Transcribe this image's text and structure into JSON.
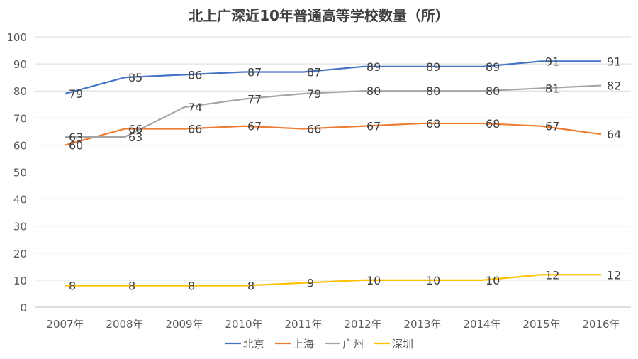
{
  "chart_data": {
    "type": "line",
    "title": "北上广深近10年普通高等学校数量（所）",
    "categories": [
      "2007年",
      "2008年",
      "2009年",
      "2010年",
      "2011年",
      "2012年",
      "2013年",
      "2014年",
      "2015年",
      "2016年"
    ],
    "series": [
      {
        "name": "北京",
        "color": "#4472C4",
        "values": [
          79,
          85,
          86,
          87,
          87,
          89,
          89,
          89,
          91,
          91
        ]
      },
      {
        "name": "上海",
        "color": "#ED7D31",
        "values": [
          60,
          66,
          66,
          67,
          66,
          67,
          68,
          68,
          67,
          64
        ]
      },
      {
        "name": "广州",
        "color": "#A5A5A5",
        "values": [
          63,
          63,
          74,
          77,
          79,
          80,
          80,
          80,
          81,
          82
        ]
      },
      {
        "name": "深圳",
        "color": "#FFC000",
        "values": [
          8,
          8,
          8,
          8,
          9,
          10,
          10,
          10,
          12,
          12
        ]
      }
    ],
    "ylim": [
      0,
      100
    ],
    "yticks": [
      0,
      10,
      20,
      30,
      40,
      50,
      60,
      70,
      80,
      90,
      100
    ],
    "grid": true,
    "legend_position": "bottom"
  }
}
